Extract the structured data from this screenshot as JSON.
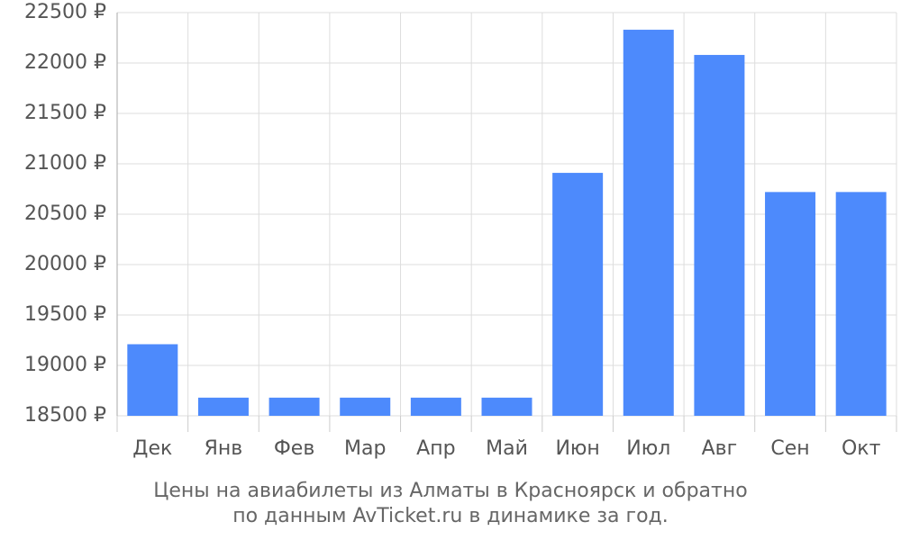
{
  "chart_data": {
    "type": "bar",
    "categories": [
      "Дек",
      "Янв",
      "Фев",
      "Мар",
      "Апр",
      "Май",
      "Июн",
      "Июл",
      "Авг",
      "Сен",
      "Окт"
    ],
    "values": [
      19210,
      18680,
      18680,
      18680,
      18680,
      18680,
      20910,
      22330,
      22080,
      20720,
      20720
    ],
    "ylim": [
      18500,
      22500
    ],
    "yticks": [
      18500,
      19000,
      19500,
      20000,
      20500,
      21000,
      21500,
      22000,
      22500
    ],
    "currency_suffix": " ₽",
    "grid": true,
    "bar_color": "#4d8afc",
    "grid_color": "#dddddd",
    "caption_line1": "Цены на авиабилеты из Алматы в Красноярск и обратно",
    "caption_line2": "по данным AvTicket.ru в динамике за год."
  }
}
